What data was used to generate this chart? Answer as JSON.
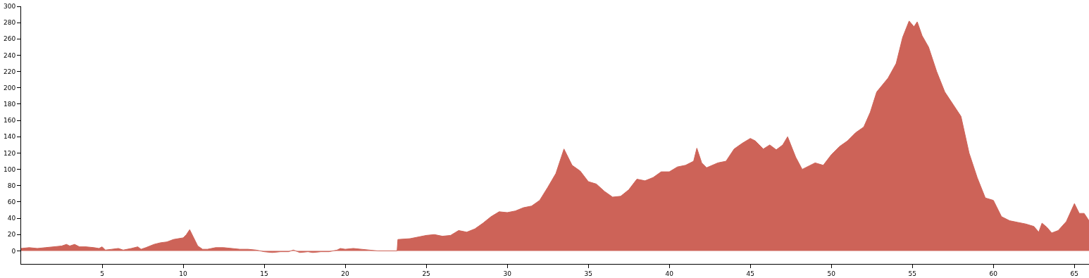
{
  "chart_data": {
    "type": "area",
    "color": "#cd6358",
    "x": [
      0,
      0.5,
      1,
      1.5,
      2,
      2.5,
      2.8,
      3,
      3.3,
      3.6,
      4,
      4.5,
      4.8,
      5,
      5.2,
      5.6,
      6,
      6.3,
      6.8,
      7.2,
      7.4,
      7.7,
      8.2,
      8.6,
      9,
      9.4,
      9.7,
      10,
      10.2,
      10.4,
      10.6,
      10.9,
      11.2,
      11.5,
      12,
      12.5,
      13,
      13.5,
      14,
      14.5,
      15,
      15.5,
      16,
      16.5,
      16.8,
      17.2,
      17.7,
      18,
      18.5,
      19,
      19.5,
      19.7,
      20,
      20.5,
      21,
      22,
      23.2,
      23.25,
      24,
      25,
      25.5,
      26,
      26.5,
      27,
      27.5,
      28,
      28.5,
      29,
      29.5,
      30,
      30.5,
      31,
      31.5,
      32,
      32.5,
      33,
      33.5,
      34,
      34.5,
      35,
      35.5,
      36,
      36.5,
      37,
      37.5,
      38,
      38.5,
      39,
      39.5,
      40,
      40.5,
      41,
      41.5,
      41.7,
      42,
      42.3,
      43,
      43.5,
      44,
      44.5,
      45,
      45.3,
      45.8,
      46.2,
      46.6,
      47,
      47.3,
      47.8,
      48.2,
      49,
      49.5,
      50,
      50.5,
      51,
      51.5,
      52,
      52.4,
      52.8,
      53.5,
      54,
      54.4,
      54.8,
      55.1,
      55.3,
      55.6,
      56,
      56.5,
      57,
      57.5,
      58,
      58.5,
      59,
      59.5,
      60,
      60.5,
      61,
      61.5,
      62,
      62.5,
      62.8,
      63,
      63.3,
      63.6,
      64,
      64.5,
      65,
      65.3,
      65.6,
      65.9
    ],
    "values": [
      3,
      4,
      3,
      4,
      5,
      6,
      8,
      6,
      8,
      5,
      5,
      4,
      3,
      5,
      1,
      2,
      3,
      1,
      3,
      5,
      2,
      4,
      8,
      10,
      11,
      14,
      15,
      16,
      20,
      26,
      18,
      6,
      2,
      2,
      4,
      4,
      3,
      2,
      2,
      1,
      -1,
      -2,
      -1,
      -1,
      1,
      -2,
      -1,
      -2,
      -1,
      -1,
      1,
      3,
      2,
      3,
      2,
      0,
      0,
      14,
      15,
      19,
      20,
      18,
      19,
      25,
      23,
      27,
      34,
      42,
      48,
      47,
      49,
      53,
      55,
      62,
      78,
      95,
      125,
      105,
      98,
      85,
      82,
      73,
      66,
      67,
      75,
      88,
      86,
      90,
      97,
      97,
      103,
      105,
      110,
      126,
      108,
      102,
      108,
      110,
      125,
      132,
      138,
      135,
      125,
      130,
      124,
      130,
      140,
      115,
      100,
      108,
      105,
      118,
      128,
      135,
      145,
      152,
      170,
      195,
      212,
      230,
      262,
      282,
      275,
      281,
      264,
      250,
      220,
      195,
      180,
      165,
      120,
      90,
      65,
      62,
      42,
      37,
      35,
      33,
      30,
      23,
      34,
      29,
      22,
      25,
      36,
      58,
      46,
      46,
      37
    ],
    "xlim": [
      0,
      65.9
    ],
    "xticks": [
      5,
      10,
      15,
      20,
      25,
      30,
      35,
      40,
      45,
      50,
      55,
      60,
      65
    ],
    "ylim": [
      -16,
      300
    ],
    "yticks": [
      0,
      20,
      40,
      60,
      80,
      100,
      120,
      140,
      160,
      180,
      200,
      220,
      240,
      260,
      280,
      300
    ],
    "tick_labels": [
      "x",
      "y"
    ]
  }
}
